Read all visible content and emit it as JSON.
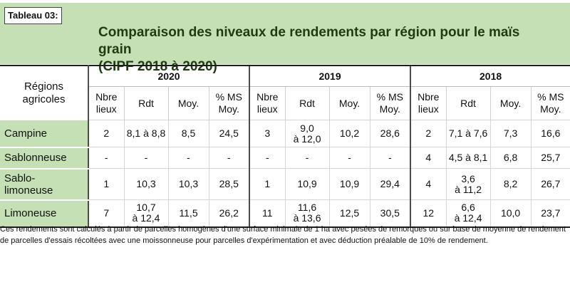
{
  "tableau_label": "Tableau 03:",
  "title_line1": "Comparaison des niveaux de rendements par région pour le maïs grain",
  "title_line2": "(CIPF 2018 à 2020)",
  "region_header_line1": "Régions",
  "region_header_line2": "agricoles",
  "years": [
    "2020",
    "2019",
    "2018"
  ],
  "subheaders": {
    "nbre_line1": "Nbre",
    "nbre_line2": "lieux",
    "rdt": "Rdt",
    "moy": "Moy.",
    "ms_line1": "% MS",
    "ms_line2": "Moy."
  },
  "rows": [
    {
      "region_line1": "Campine",
      "region_line2": "",
      "y2020": {
        "nbre": "2",
        "rdt1": "8,1 à 8,8",
        "rdt2": "",
        "moy": "8,5",
        "ms": "24,5"
      },
      "y2019": {
        "nbre": "3",
        "rdt1": "9,0",
        "rdt2": "à 12,0",
        "moy": "10,2",
        "ms": "28,6"
      },
      "y2018": {
        "nbre": "2",
        "rdt1": "7,1 à 7,6",
        "rdt2": "",
        "moy": "7,3",
        "ms": "16,6"
      }
    },
    {
      "region_line1": "Sablonneuse",
      "region_line2": "",
      "y2020": {
        "nbre": "-",
        "rdt1": "-",
        "rdt2": "",
        "moy": "-",
        "ms": "-"
      },
      "y2019": {
        "nbre": "-",
        "rdt1": "-",
        "rdt2": "",
        "moy": "-",
        "ms": "-"
      },
      "y2018": {
        "nbre": "4",
        "rdt1": "4,5 à 8,1",
        "rdt2": "",
        "moy": "6,8",
        "ms": "25,7"
      }
    },
    {
      "region_line1": "Sablo-",
      "region_line2": "limoneuse",
      "y2020": {
        "nbre": "1",
        "rdt1": "10,3",
        "rdt2": "",
        "moy": "10,3",
        "ms": "28,5"
      },
      "y2019": {
        "nbre": "1",
        "rdt1": "10,9",
        "rdt2": "",
        "moy": "10,9",
        "ms": "29,4"
      },
      "y2018": {
        "nbre": "4",
        "rdt1": "3,6",
        "rdt2": "à 11,2",
        "moy": "8,2",
        "ms": "26,7"
      }
    },
    {
      "region_line1": "Limoneuse",
      "region_line2": "",
      "y2020": {
        "nbre": "7",
        "rdt1": "10,7",
        "rdt2": "à 12,4",
        "moy": "11,5",
        "ms": "26,2"
      },
      "y2019": {
        "nbre": "11",
        "rdt1": "11,6",
        "rdt2": "à 13,6",
        "moy": "12,5",
        "ms": "30,5"
      },
      "y2018": {
        "nbre": "12",
        "rdt1": "6,6",
        "rdt2": "à 12,4",
        "moy": "10,0",
        "ms": "23,7"
      }
    }
  ],
  "footnote": "Ces rendements sont calculés à partir de parcelles homogènes d'une surface minimale de 1 ha avec pesées de remorques ou sur base de moyenne de rendement de parcelles d'essais récoltées avec une moissonneuse pour parcelles d'expérimentation et avec déduction préalable de 10% de rendement.",
  "colors": {
    "band_green": "#c5e0b4",
    "title_green": "#1f3b10"
  }
}
